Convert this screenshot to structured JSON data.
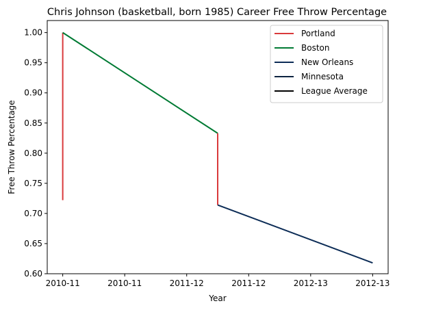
{
  "chart_data": {
    "type": "line",
    "title": "Chris Johnson (basketball, born 1985) Career Free Throw Percentage",
    "xlabel": "Year",
    "ylabel": "Free Throw Percentage",
    "x_ticks": [
      {
        "x": 0,
        "label": "2010-11"
      },
      {
        "x": 0.4,
        "label": "2010-11"
      },
      {
        "x": 0.8,
        "label": "2011-12"
      },
      {
        "x": 1.2,
        "label": "2011-12"
      },
      {
        "x": 1.6,
        "label": "2012-13"
      },
      {
        "x": 2.0,
        "label": "2012-13"
      }
    ],
    "xlim": [
      -0.1,
      2.1
    ],
    "ylim": [
      0.6,
      1.02
    ],
    "y_ticks": [
      0.6,
      0.65,
      0.7,
      0.75,
      0.8,
      0.85,
      0.9,
      0.95,
      1.0
    ],
    "legend_position": "top-right",
    "series": [
      {
        "name": "Portland",
        "color": "#d9393b",
        "points": [
          [
            0,
            0.722
          ],
          [
            0,
            1.0
          ]
        ]
      },
      {
        "name": "Boston",
        "color": "#007a33",
        "points": [
          [
            0,
            1.0
          ],
          [
            1.0,
            0.833
          ]
        ]
      },
      {
        "name": "Portland",
        "color": "#d9393b",
        "points": [
          [
            1.0,
            0.833
          ],
          [
            1.0,
            0.714
          ]
        ],
        "in_legend": false
      },
      {
        "name": "New Orleans",
        "color": "#0c2c56",
        "points": [
          [
            1.0,
            0.714
          ],
          [
            2.0,
            0.618
          ]
        ]
      },
      {
        "name": "Minnesota",
        "color": "#0c2340",
        "points": [],
        "in_legend": true
      },
      {
        "name": "League Average",
        "color": "#000000",
        "points": [],
        "in_legend": true
      }
    ]
  }
}
